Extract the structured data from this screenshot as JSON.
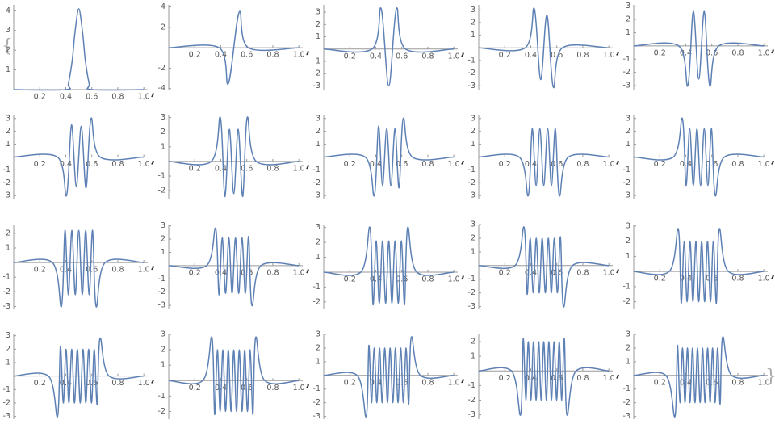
{
  "open_brace": "{",
  "close_brace": "}",
  "separator": ",",
  "chart_data": [
    {
      "type": "line",
      "color": "#5e81b5",
      "xlim": [
        0,
        1.03
      ],
      "ylim": [
        0,
        4.3
      ],
      "xticks": [
        0.2,
        0.4,
        0.6,
        0.8,
        {
          "value": 1,
          "label": "1.0"
        }
      ],
      "yticks": [
        1,
        2,
        3,
        4
      ],
      "x": [
        0,
        0.4,
        0.42,
        0.45,
        0.47,
        0.5,
        0.53,
        0.55,
        0.58,
        0.6,
        1
      ],
      "values": [
        0,
        0,
        0.3,
        1.5,
        2.85,
        4.1,
        2.85,
        1.5,
        0.3,
        0,
        0
      ]
    },
    {
      "type": "line",
      "color": "#5e81b5",
      "xlim": [
        0,
        1.03
      ],
      "ylim": [
        -4.1,
        4.2
      ],
      "xticks": [
        0.2,
        0.4,
        0.6,
        0.8,
        {
          "value": 1,
          "label": "1.0"
        }
      ],
      "yticks": [
        -4,
        -2,
        2,
        4
      ],
      "x": [
        0,
        0.388,
        0.458,
        0.542,
        0.612,
        1
      ],
      "values": [
        0,
        0,
        -3.5,
        3.5,
        0,
        0
      ]
    },
    {
      "type": "line",
      "color": "#5e81b5",
      "xlim": [
        0,
        1.03
      ],
      "ylim": [
        -3.3,
        3.6
      ],
      "xticks": [
        0.2,
        0.4,
        0.6,
        0.8,
        {
          "value": 1,
          "label": "1.0"
        }
      ],
      "yticks": [
        -3,
        -2,
        -1,
        1,
        2,
        3
      ],
      "x": [
        0,
        0.371,
        0.441,
        0.5,
        0.559,
        0.629,
        1
      ],
      "values": [
        0,
        0,
        3.3,
        -3,
        3.3,
        0,
        0
      ]
    },
    {
      "type": "line",
      "color": "#5e81b5",
      "xlim": [
        0,
        1.03
      ],
      "ylim": [
        -3.3,
        3.4
      ],
      "xticks": [
        0.2,
        0.4,
        0.6,
        0.8,
        {
          "value": 1,
          "label": "1.0"
        }
      ],
      "yticks": [
        -3,
        -2,
        -1,
        1,
        2,
        3
      ],
      "x": [
        0,
        0.357,
        0.427,
        0.476,
        0.524,
        0.573,
        0.643,
        1
      ],
      "values": [
        0,
        0,
        3.1,
        -2.5,
        2.6,
        -3.1,
        0,
        0
      ]
    },
    {
      "type": "line",
      "color": "#5e81b5",
      "xlim": [
        0,
        1.03
      ],
      "ylim": [
        -3.3,
        3.1
      ],
      "xticks": [
        0.2,
        0.4,
        0.6,
        0.8,
        {
          "value": 1,
          "label": "1.0"
        }
      ],
      "yticks": [
        -3,
        -2,
        -1,
        1,
        2,
        3
      ],
      "x": [
        0,
        0.346,
        0.416,
        0.458,
        0.5,
        0.542,
        0.584,
        0.654,
        1
      ],
      "values": [
        0,
        0,
        -3,
        2.6,
        -2.5,
        2.6,
        -3,
        0,
        0
      ]
    },
    {
      "type": "line",
      "color": "#5e81b5",
      "xlim": [
        0,
        1.03
      ],
      "ylim": [
        -3.3,
        3.3
      ],
      "xticks": [
        0.2,
        0.4,
        0.6,
        0.8,
        {
          "value": 1,
          "label": "1.0"
        }
      ],
      "yticks": [
        -3,
        -2,
        -1,
        1,
        2,
        3
      ],
      "x": [
        0,
        0.336,
        0.406,
        0.444,
        0.481,
        0.519,
        0.556,
        0.594,
        0.664,
        1
      ],
      "values": [
        0,
        0,
        -3,
        2.5,
        -2.3,
        2.4,
        -2.4,
        3,
        0,
        0
      ]
    },
    {
      "type": "line",
      "color": "#5e81b5",
      "xlim": [
        0,
        1.03
      ],
      "ylim": [
        -2.6,
        3.2
      ],
      "xticks": [
        0.2,
        0.4,
        0.6,
        0.8,
        {
          "value": 1,
          "label": "1.0"
        }
      ],
      "yticks": [
        -2,
        -1,
        1,
        2,
        3
      ],
      "x": [
        0,
        0.327,
        0.397,
        0.431,
        0.466,
        0.5,
        0.534,
        0.569,
        0.603,
        0.673,
        1
      ],
      "values": [
        0,
        0,
        3,
        -2.4,
        2.2,
        -2.2,
        2.2,
        -2.4,
        3,
        0,
        0
      ]
    },
    {
      "type": "line",
      "color": "#5e81b5",
      "xlim": [
        0,
        1.03
      ],
      "ylim": [
        -3.3,
        3.3
      ],
      "xticks": [
        0.2,
        0.4,
        0.6,
        0.8,
        {
          "value": 1,
          "label": "1.0"
        }
      ],
      "yticks": [
        -3,
        -2,
        -1,
        1,
        2,
        3
      ],
      "x": [
        0,
        0.319,
        0.389,
        0.421,
        0.452,
        0.484,
        0.516,
        0.548,
        0.579,
        0.611,
        0.681,
        1
      ],
      "values": [
        0,
        0,
        -3,
        2.4,
        -2.2,
        2.2,
        -2.2,
        2.2,
        -2.4,
        3,
        0,
        0
      ]
    },
    {
      "type": "line",
      "color": "#5e81b5",
      "xlim": [
        0,
        1.03
      ],
      "ylim": [
        -3.3,
        3.3
      ],
      "xticks": [
        0.2,
        0.4,
        0.6,
        0.8,
        {
          "value": 1,
          "label": "1.0"
        }
      ],
      "yticks": [
        -3,
        -2,
        -1,
        1,
        2,
        3
      ],
      "x": [
        0,
        0.311,
        0.381,
        0.411,
        0.441,
        0.47,
        0.5,
        0.53,
        0.559,
        0.589,
        0.619,
        0.689,
        1
      ],
      "values": [
        0,
        0,
        -3,
        2.2,
        -2.2,
        2.2,
        -2.2,
        2.2,
        -2.2,
        2.2,
        -3,
        0,
        0
      ]
    },
    {
      "type": "line",
      "color": "#5e81b5",
      "xlim": [
        0,
        1.03
      ],
      "ylim": [
        -3.3,
        3.3
      ],
      "xticks": [
        0.2,
        0.4,
        0.6,
        0.8,
        {
          "value": 1,
          "label": "1.0"
        }
      ],
      "yticks": [
        -3,
        -2,
        -1,
        1,
        2,
        3
      ],
      "x": [
        0,
        0.304,
        0.374,
        0.402,
        0.43,
        0.458,
        0.486,
        0.514,
        0.542,
        0.57,
        0.598,
        0.626,
        0.696,
        1
      ],
      "values": [
        0,
        0,
        3,
        -2.2,
        2.2,
        -2.2,
        2.2,
        -2.2,
        2.2,
        -2.2,
        2.2,
        -3,
        0,
        0
      ]
    },
    {
      "type": "line",
      "color": "#5e81b5",
      "xlim": [
        0,
        1.03
      ],
      "ylim": [
        -3.2,
        2.6
      ],
      "xticks": [
        0.2,
        0.4,
        0.6,
        0.8,
        {
          "value": 1,
          "label": "1.0"
        }
      ],
      "yticks": [
        -3,
        -2,
        -1,
        1,
        2
      ],
      "x": [
        0,
        0.297,
        0.367,
        0.394,
        0.42,
        0.447,
        0.473,
        0.5,
        0.527,
        0.553,
        0.58,
        0.606,
        0.633,
        0.703,
        1
      ],
      "values": [
        0,
        0,
        -3,
        2.2,
        -2.2,
        2.2,
        -2.2,
        2.2,
        -2.2,
        2.2,
        -2.2,
        2.2,
        -3,
        0,
        0
      ]
    },
    {
      "type": "line",
      "color": "#5e81b5",
      "xlim": [
        0,
        1.03
      ],
      "ylim": [
        -3.3,
        3.1
      ],
      "xticks": [
        0.2,
        0.4,
        0.6,
        0.8,
        {
          "value": 1,
          "label": "1.0"
        }
      ],
      "yticks": [
        -3,
        -2,
        -1,
        1,
        2,
        3
      ],
      "x": [
        0,
        0.291,
        0.361,
        0.386,
        0.411,
        0.437,
        0.462,
        0.487,
        0.513,
        0.538,
        0.563,
        0.589,
        0.614,
        0.639,
        0.709,
        1
      ],
      "values": [
        0,
        0,
        2.8,
        -2.2,
        2.1,
        -2.1,
        2.1,
        -2.1,
        2.1,
        -2.1,
        2.1,
        -2.1,
        2.2,
        -3,
        0,
        0
      ]
    },
    {
      "type": "line",
      "color": "#5e81b5",
      "xlim": [
        0,
        1.03
      ],
      "ylim": [
        -2.5,
        3.2
      ],
      "xticks": [
        0.2,
        0.4,
        0.6,
        0.8,
        {
          "value": 1,
          "label": "1.0"
        }
      ],
      "yticks": [
        -2,
        -1,
        1,
        2,
        3
      ],
      "x": [
        0,
        0.285,
        0.355,
        0.379,
        0.403,
        0.427,
        0.452,
        0.476,
        0.5,
        0.524,
        0.548,
        0.573,
        0.597,
        0.621,
        0.645,
        0.715,
        1
      ],
      "values": [
        0,
        0,
        3,
        -2.2,
        2.1,
        -2.1,
        2.1,
        -2.1,
        2.1,
        -2.1,
        2.1,
        -2.1,
        2.1,
        -2.2,
        3,
        0,
        0
      ]
    },
    {
      "type": "line",
      "color": "#5e81b5",
      "xlim": [
        0,
        1.03
      ],
      "ylim": [
        -3.2,
        3
      ],
      "xticks": [
        0.2,
        0.4,
        0.6,
        0.8,
        {
          "value": 1,
          "label": "1.0"
        }
      ],
      "yticks": [
        -3,
        -2,
        -1,
        1,
        2,
        3
      ],
      "x": [
        0,
        0.279,
        0.349,
        0.372,
        0.395,
        0.419,
        0.442,
        0.465,
        0.488,
        0.512,
        0.535,
        0.558,
        0.581,
        0.605,
        0.628,
        0.651,
        0.721,
        1
      ],
      "values": [
        0,
        0,
        2.8,
        -2.1,
        2,
        -2,
        2,
        -2,
        2,
        -2,
        2,
        -2,
        2,
        -2,
        2.1,
        -3,
        0,
        0
      ]
    },
    {
      "type": "line",
      "color": "#5e81b5",
      "xlim": [
        0,
        1.03
      ],
      "ylim": [
        -2.5,
        3.1
      ],
      "xticks": [
        0.2,
        0.4,
        0.6,
        0.8,
        {
          "value": 1,
          "label": "1.0"
        }
      ],
      "yticks": [
        -2,
        -1,
        1,
        2,
        3
      ],
      "x": [
        0,
        0.273,
        0.343,
        0.365,
        0.388,
        0.41,
        0.433,
        0.455,
        0.478,
        0.5,
        0.522,
        0.545,
        0.567,
        0.59,
        0.612,
        0.635,
        0.657,
        0.727,
        1
      ],
      "values": [
        0,
        0,
        2.8,
        -2.1,
        2,
        -2,
        2,
        -2,
        2,
        -2,
        2,
        -2,
        2,
        -2,
        2,
        -2.1,
        2.8,
        0,
        0
      ]
    },
    {
      "type": "line",
      "color": "#5e81b5",
      "xlim": [
        0,
        1.03
      ],
      "ylim": [
        -3.2,
        3.1
      ],
      "xticks": [
        0.2,
        0.4,
        0.6,
        0.8,
        {
          "value": 1,
          "label": "1.0"
        }
      ],
      "yticks": [
        -3,
        -2,
        -1,
        1,
        2,
        3
      ],
      "x": [
        0,
        0.267,
        0.337,
        0.359,
        0.381,
        0.402,
        0.424,
        0.446,
        0.467,
        0.489,
        0.511,
        0.533,
        0.554,
        0.576,
        0.598,
        0.619,
        0.641,
        0.663,
        0.733,
        1
      ],
      "values": [
        0,
        0,
        -3,
        2.2,
        -2,
        2,
        -2,
        2,
        -2,
        2,
        -2,
        2,
        -2,
        2,
        -2,
        2,
        -2.1,
        2.8,
        0,
        0
      ]
    },
    {
      "type": "line",
      "color": "#5e81b5",
      "xlim": [
        0,
        1.03
      ],
      "ylim": [
        -2.5,
        3
      ],
      "xticks": [
        0.2,
        0.4,
        0.6,
        0.8,
        {
          "value": 1,
          "label": "1.0"
        }
      ],
      "yticks": [
        -2,
        -1,
        1,
        2,
        3
      ],
      "x": [
        0,
        0.262,
        0.332,
        0.353,
        0.374,
        0.395,
        0.416,
        0.437,
        0.458,
        0.479,
        0.5,
        0.521,
        0.542,
        0.563,
        0.584,
        0.605,
        0.626,
        0.647,
        0.668,
        0.738,
        1
      ],
      "values": [
        0,
        0,
        2.8,
        -2.2,
        2,
        -2,
        2,
        -2,
        2,
        -2,
        2,
        -2,
        2,
        -2,
        2,
        -2,
        2,
        -2.2,
        2.8,
        0,
        0
      ]
    },
    {
      "type": "line",
      "color": "#5e81b5",
      "xlim": [
        0,
        1.03
      ],
      "ylim": [
        -3.2,
        3
      ],
      "xticks": [
        0.2,
        0.4,
        0.6,
        0.8,
        {
          "value": 1,
          "label": "1.0"
        }
      ],
      "yticks": [
        -3,
        -2,
        -1,
        1,
        2,
        3
      ],
      "x": [
        0,
        0.257,
        0.327,
        0.347,
        0.367,
        0.388,
        0.408,
        0.429,
        0.449,
        0.469,
        0.49,
        0.51,
        0.531,
        0.551,
        0.571,
        0.592,
        0.612,
        0.633,
        0.653,
        0.673,
        0.743,
        1
      ],
      "values": [
        0,
        0,
        -3,
        2.2,
        -2,
        2,
        -2,
        2,
        -2,
        2,
        -2,
        2,
        -2,
        2,
        -2,
        2,
        -2,
        2,
        -2.1,
        2.8,
        0,
        0
      ]
    },
    {
      "type": "line",
      "color": "#5e81b5",
      "xlim": [
        0,
        1.03
      ],
      "ylim": [
        -3.3,
        2.5
      ],
      "xticks": [
        0.2,
        0.4,
        0.6,
        0.8,
        {
          "value": 1,
          "label": "1.0"
        }
      ],
      "yticks": [
        -3,
        -2,
        -1,
        1,
        2
      ],
      "x": [
        0,
        0.252,
        0.322,
        0.342,
        0.362,
        0.381,
        0.401,
        0.421,
        0.441,
        0.461,
        0.48,
        0.5,
        0.52,
        0.539,
        0.559,
        0.579,
        0.599,
        0.619,
        0.638,
        0.658,
        0.678,
        0.748,
        1
      ],
      "values": [
        0,
        0,
        -3,
        2.2,
        -2,
        2,
        -2,
        2,
        -2,
        2,
        -2,
        2,
        -2,
        2,
        -2,
        2,
        -2,
        2,
        -2,
        2.2,
        -3,
        0,
        0
      ]
    },
    {
      "type": "line",
      "color": "#5e81b5",
      "xlim": [
        0,
        1.03
      ],
      "ylim": [
        -3.2,
        3
      ],
      "xticks": [
        0.2,
        0.4,
        0.6,
        0.8,
        {
          "value": 1,
          "label": "1.0"
        }
      ],
      "yticks": [
        -3,
        -2,
        -1,
        1,
        2,
        3
      ],
      "x": [
        0,
        0.247,
        0.317,
        0.336,
        0.355,
        0.375,
        0.394,
        0.413,
        0.432,
        0.452,
        0.471,
        0.49,
        0.51,
        0.529,
        0.548,
        0.568,
        0.587,
        0.606,
        0.625,
        0.645,
        0.664,
        0.683,
        0.753,
        1
      ],
      "values": [
        0,
        0,
        -3,
        2.2,
        -2,
        2,
        -2,
        2,
        -2,
        2,
        -2,
        2,
        -2,
        2,
        -2,
        2,
        -2,
        2,
        -2,
        2,
        -2.1,
        2.8,
        0,
        0
      ]
    }
  ]
}
